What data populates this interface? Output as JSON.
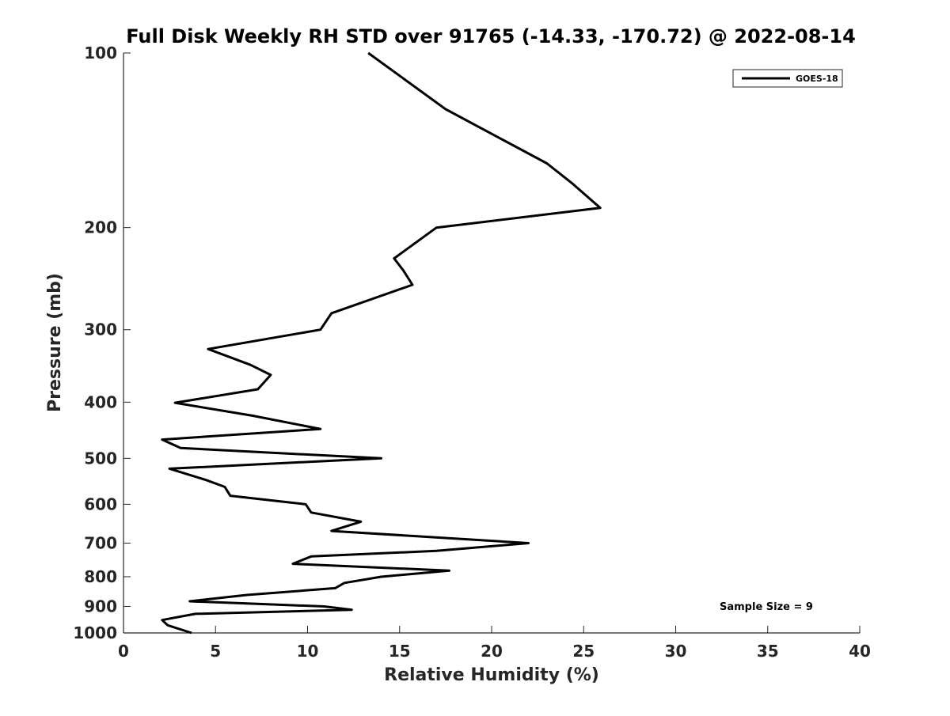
{
  "chart_data": {
    "type": "line",
    "title": "Full Disk Weekly RH STD over 91765 (-14.33, -170.72) @ 2022-08-14",
    "xlabel": "Relative Humidity (%)",
    "ylabel": "Pressure (mb)",
    "xlim": [
      0,
      40
    ],
    "ylim": [
      100,
      1000
    ],
    "yscale": "log",
    "y_reversed": true,
    "xticks": [
      0,
      5,
      10,
      15,
      20,
      25,
      30,
      35,
      40
    ],
    "yticks": [
      100,
      200,
      300,
      400,
      500,
      600,
      700,
      800,
      900,
      1000
    ],
    "grid": false,
    "legend_position": "top-right",
    "series": [
      {
        "name": "GOES-18",
        "color": "#000000",
        "points": [
          [
            13.3,
            100
          ],
          [
            17.5,
            125
          ],
          [
            23.0,
            155
          ],
          [
            24.4,
            168
          ],
          [
            25.9,
            185
          ],
          [
            17.0,
            200
          ],
          [
            14.7,
            226
          ],
          [
            15.2,
            237
          ],
          [
            15.7,
            251
          ],
          [
            11.3,
            281
          ],
          [
            10.7,
            300
          ],
          [
            4.6,
            324
          ],
          [
            6.9,
            345
          ],
          [
            8.0,
            359
          ],
          [
            7.3,
            380
          ],
          [
            2.8,
            401
          ],
          [
            7.0,
            422
          ],
          [
            10.7,
            445
          ],
          [
            2.1,
            464
          ],
          [
            3.1,
            480
          ],
          [
            14.0,
            500
          ],
          [
            2.5,
            521
          ],
          [
            4.5,
            545
          ],
          [
            5.5,
            560
          ],
          [
            5.8,
            580
          ],
          [
            9.9,
            600
          ],
          [
            10.2,
            620
          ],
          [
            12.9,
            643
          ],
          [
            11.3,
            667
          ],
          [
            22.0,
            700
          ],
          [
            17.0,
            722
          ],
          [
            10.2,
            738
          ],
          [
            9.2,
            760
          ],
          [
            17.7,
            781
          ],
          [
            14.0,
            800
          ],
          [
            12.0,
            820
          ],
          [
            11.5,
            837
          ],
          [
            6.7,
            860
          ],
          [
            3.6,
            882
          ],
          [
            10.9,
            900
          ],
          [
            12.4,
            912
          ],
          [
            3.9,
            927
          ],
          [
            2.1,
            950
          ],
          [
            2.4,
            970
          ],
          [
            3.7,
            1000
          ]
        ]
      }
    ],
    "annotations": [
      "Sample Size = 9"
    ]
  }
}
